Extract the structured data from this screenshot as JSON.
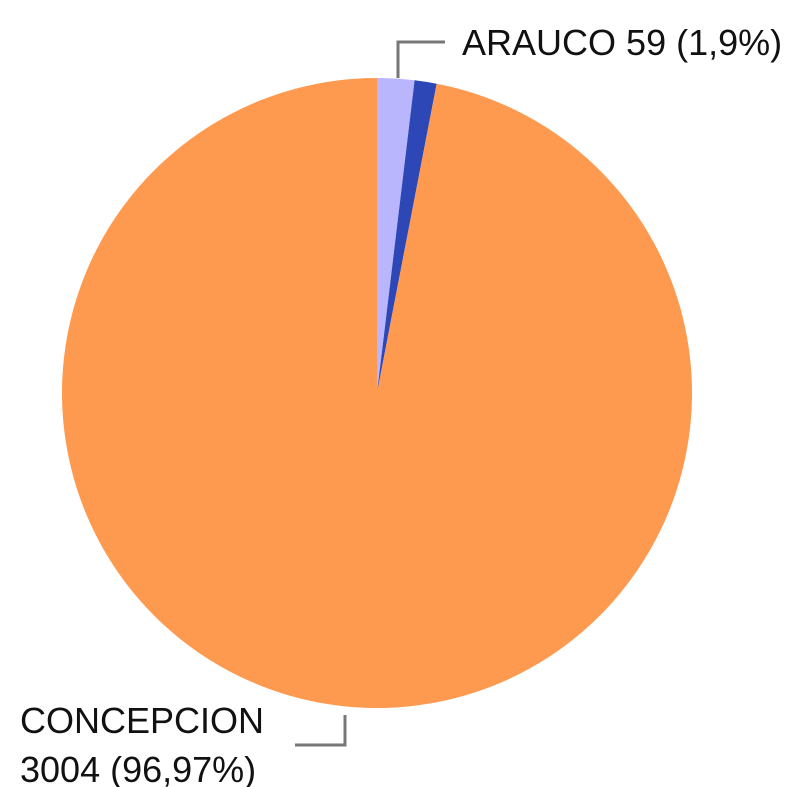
{
  "chart_data": {
    "type": "pie",
    "categories": [
      "ARAUCO",
      null,
      "CONCEPCION"
    ],
    "values": [
      59,
      35,
      3004
    ],
    "value_labels": [
      "59 (1,9%)",
      null,
      "3004 (96,97%)"
    ],
    "colors": [
      "#b9b6fe",
      "#2d48b6",
      "#fe9a50"
    ]
  }
}
